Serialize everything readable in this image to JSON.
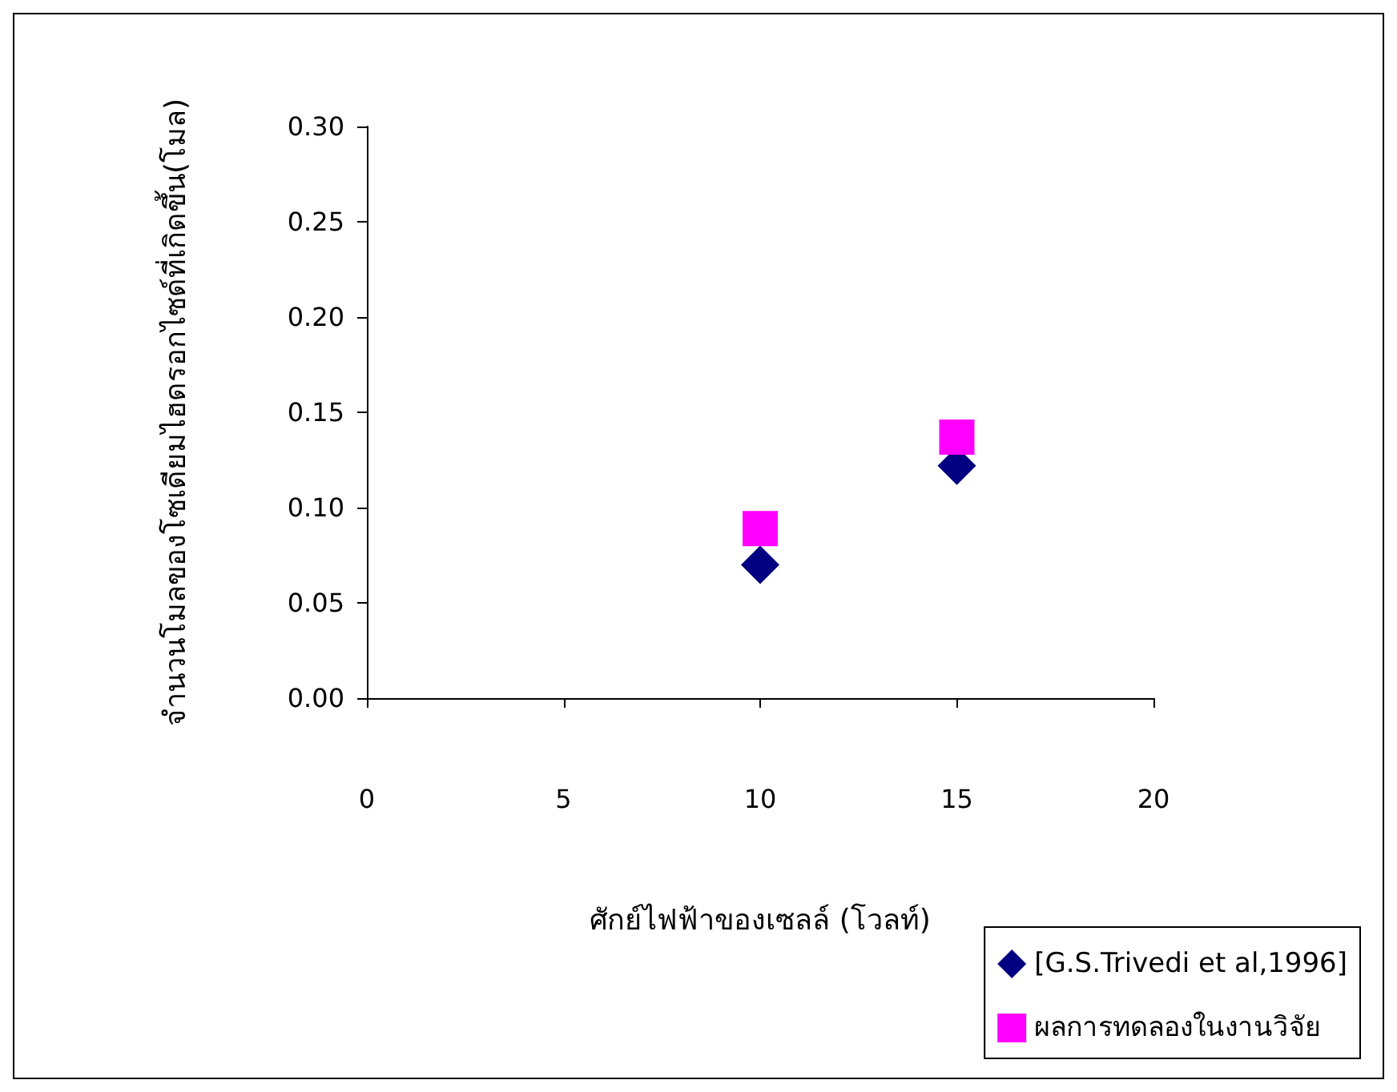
{
  "chart_data": {
    "type": "scatter",
    "xlabel": "ศักย์ไฟฟ้าของเซลล์ (โวลท์)",
    "ylabel": "จำนวนโมลของโซเดียมไฮดรอกไซด์ที่เกิดขึ้น(โมล)",
    "x": [
      10,
      15
    ],
    "series": [
      {
        "name": "[G.S.Trivedi et al,1996]",
        "color": "#000080",
        "marker": "diamond",
        "values": [
          0.07,
          0.122
        ]
      },
      {
        "name": "ผลการทดลองในงานวิจัย",
        "color": "#ff00ff",
        "marker": "square",
        "values": [
          0.089,
          0.137
        ]
      }
    ],
    "xlim": [
      0,
      20
    ],
    "xticks": [
      0,
      5,
      10,
      15,
      20
    ],
    "ylim": [
      0,
      0.3
    ],
    "yticks": [
      {
        "value": 0,
        "label": "0.00"
      },
      0.05,
      {
        "value": 0.1,
        "label": "0.10"
      },
      0.15,
      {
        "value": 0.2,
        "label": "0.20"
      },
      0.25,
      {
        "value": 0.3,
        "label": "0.30"
      }
    ],
    "grid": false,
    "legend": "bottom right"
  }
}
